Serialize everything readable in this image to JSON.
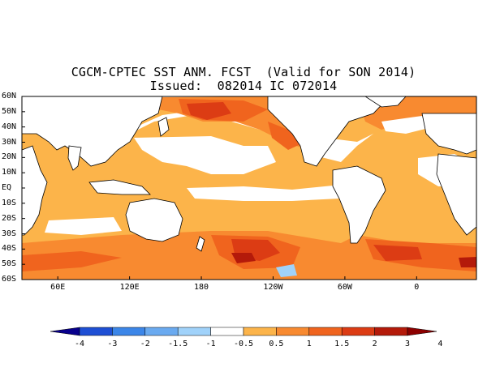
{
  "title": {
    "line1": "CGCM-CPTEC SST ANM. FCST  (Valid for SON 2014)",
    "line2": "Issued:  082014 IC 072014"
  },
  "map_data": {
    "type": "global sea surface temperature anomaly forecast",
    "lat_labels": [
      "60N",
      "50N",
      "40N",
      "30N",
      "20N",
      "10N",
      "EQ",
      "10S",
      "20S",
      "30S",
      "40S",
      "50S",
      "60S"
    ],
    "lon_labels": [
      "60E",
      "120E",
      "180",
      "120W",
      "60W",
      "0"
    ],
    "lon_range": [
      30,
      410
    ],
    "lat_range": [
      -60,
      60
    ],
    "land_color": "#ffffff",
    "coastline_color": "#000000"
  },
  "colorbar": {
    "labels": [
      "-4",
      "-3",
      "-2",
      "-1.5",
      "-1",
      "-0.5",
      "0.5",
      "1",
      "1.5",
      "2",
      "3",
      "4"
    ],
    "colors": [
      "#08008c",
      "#1e4fd4",
      "#3c86e8",
      "#6aaaf0",
      "#a0d2fa",
      "#ffffff",
      "#fcb44a",
      "#f88a30",
      "#f0641e",
      "#dc3c14",
      "#b41a0a",
      "#8c0000"
    ],
    "extend": "both"
  }
}
